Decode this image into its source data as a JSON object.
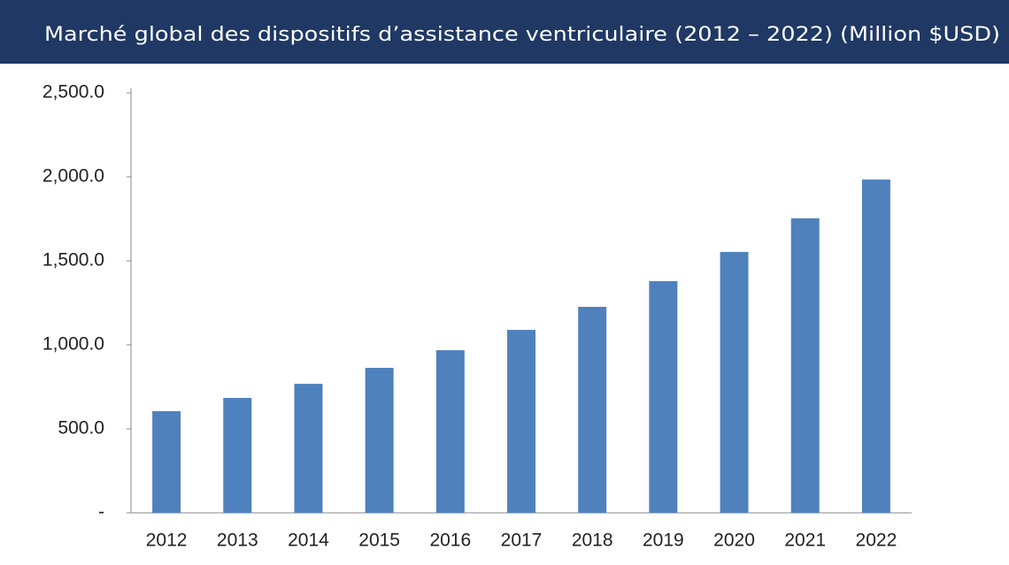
{
  "chart_data": {
    "type": "bar",
    "title": "Marché global des dispositifs d’assistance ventriculaire (2012 – 2022) (Million $USD)",
    "categories": [
      "2012",
      "2013",
      "2014",
      "2015",
      "2016",
      "2017",
      "2018",
      "2019",
      "2020",
      "2021",
      "2022"
    ],
    "values": [
      605,
      684,
      768,
      863,
      968,
      1089,
      1226,
      1379,
      1553,
      1753,
      1984
    ],
    "color": "#4f81bd",
    "ylim": [
      0,
      2500
    ],
    "yticks": [
      {
        "value": 0,
        "label": "-"
      },
      {
        "value": 500,
        "label": "500.0"
      },
      {
        "value": 1000,
        "label": "1,000.0"
      },
      {
        "value": 1500,
        "label": "1,500.0"
      },
      {
        "value": 2000,
        "label": "2,000.0"
      },
      {
        "value": 2500,
        "label": "2,500.0"
      }
    ],
    "grid": false
  }
}
